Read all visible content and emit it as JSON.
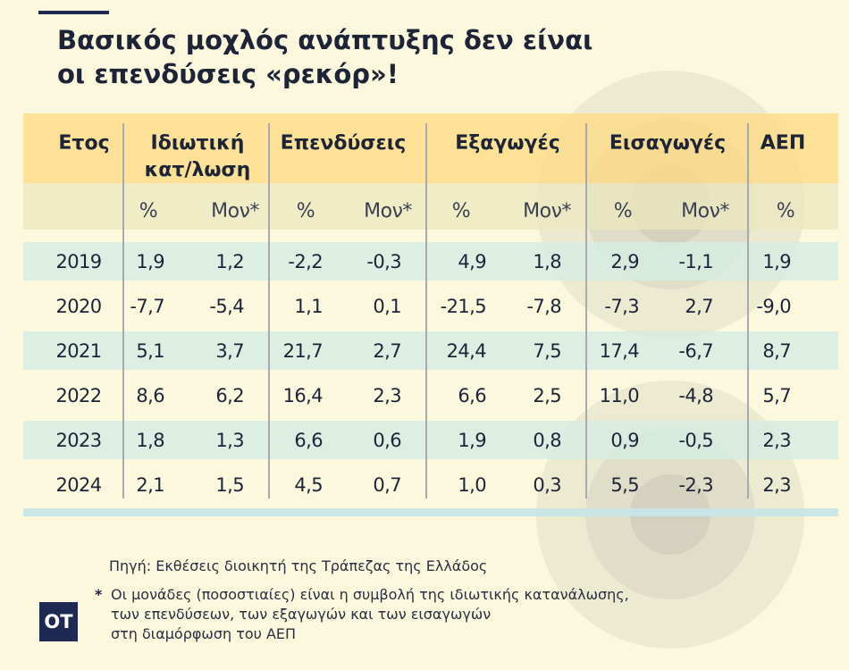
{
  "title": {
    "line1": "Βασικός μοχλός ανάπτυξης δεν είναι",
    "line2": "οι επενδύσεις «ρεκόρ»!"
  },
  "table": {
    "headers": {
      "year": "Ετος",
      "consumption_l1": "Ιδιωτική",
      "consumption_l2": "κατ/λωση",
      "investment": "Επενδύσεις",
      "exports": "Εξαγωγές",
      "imports": "Εισαγωγές",
      "gdp": "ΑΕΠ"
    },
    "units": {
      "pct": "%",
      "mon": "Μον*"
    },
    "rows": [
      {
        "year": "2019",
        "cons_pct": "1,9",
        "cons_mon": "1,2",
        "inv_pct": "-2,2",
        "inv_mon": "-0,3",
        "exp_pct": "4,9",
        "exp_mon": "1,8",
        "imp_pct": "2,9",
        "imp_mon": "-1,1",
        "gdp": "1,9"
      },
      {
        "year": "2020",
        "cons_pct": "-7,7",
        "cons_mon": "-5,4",
        "inv_pct": "1,1",
        "inv_mon": "0,1",
        "exp_pct": "-21,5",
        "exp_mon": "-7,8",
        "imp_pct": "-7,3",
        "imp_mon": "2,7",
        "gdp": "-9,0"
      },
      {
        "year": "2021",
        "cons_pct": "5,1",
        "cons_mon": "3,7",
        "inv_pct": "21,7",
        "inv_mon": "2,7",
        "exp_pct": "24,4",
        "exp_mon": "7,5",
        "imp_pct": "17,4",
        "imp_mon": "-6,7",
        "gdp": "8,7"
      },
      {
        "year": "2022",
        "cons_pct": "8,6",
        "cons_mon": "6,2",
        "inv_pct": "16,4",
        "inv_mon": "2,3",
        "exp_pct": "6,6",
        "exp_mon": "2,5",
        "imp_pct": "11,0",
        "imp_mon": "-4,8",
        "gdp": "5,7"
      },
      {
        "year": "2023",
        "cons_pct": "1,8",
        "cons_mon": "1,3",
        "inv_pct": "6,6",
        "inv_mon": "0,6",
        "exp_pct": "1,9",
        "exp_mon": "0,8",
        "imp_pct": "0,9",
        "imp_mon": "-0,5",
        "gdp": "2,3"
      },
      {
        "year": "2024",
        "cons_pct": "2,1",
        "cons_mon": "1,5",
        "inv_pct": "4,5",
        "inv_mon": "0,7",
        "exp_pct": "1,0",
        "exp_mon": "0,3",
        "imp_pct": "5,5",
        "imp_mon": "-2,3",
        "gdp": "2,3"
      }
    ]
  },
  "source": "Πηγή: Εκθέσεις διοικητή της Τράπεζας της Ελλάδος",
  "note": {
    "star": "*",
    "line1": "Οι μονάδες (ποσοστιαίες) είναι η συμβολή της ιδιωτικής κατανάλωσης,",
    "line2": "των επενδύσεων, των εξαγωγών και των εισαγωγών",
    "line3": "στη διαμόρφωση του ΑΕΠ"
  },
  "logo": "OT",
  "colors": {
    "background": "#fbf8dd",
    "header_band": "#fcdb86",
    "row_band": "#d4ece4",
    "logo_bg": "#1e2a52"
  }
}
